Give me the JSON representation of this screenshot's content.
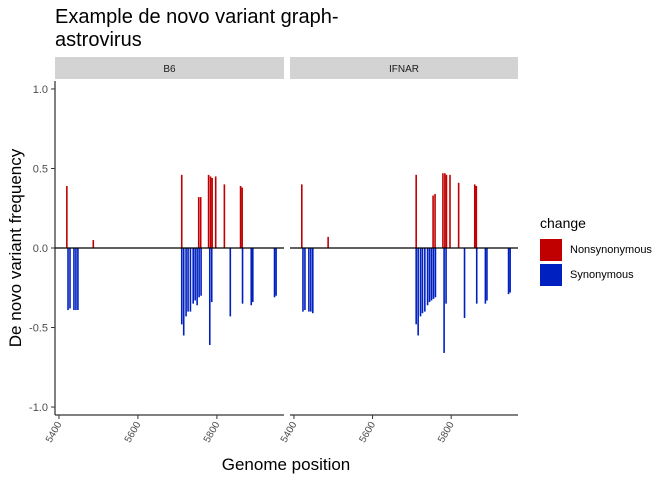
{
  "chart_data": {
    "type": "bar",
    "title_lines": [
      "Example de novo variant graph-",
      "astrovirus"
    ],
    "xlabel": "Genome position",
    "ylabel": "De novo variant frequency",
    "xlim": [
      5390,
      5970
    ],
    "ylim": [
      -1.05,
      1.05
    ],
    "x_ticks": [
      5400,
      5600,
      5800
    ],
    "y_ticks": [
      1.0,
      0.5,
      0.0,
      -0.5,
      -1.0
    ],
    "y_tick_labels": [
      "1.0",
      "0.5",
      "0.0",
      "-0.5",
      "-1.0"
    ],
    "grid": false,
    "legend": {
      "title": "change",
      "placement": "right",
      "items": [
        {
          "label": "Nonsynonymous",
          "color": "#C00000"
        },
        {
          "label": "Synonymous",
          "color": "#0020C0"
        }
      ]
    },
    "panels": [
      {
        "label": "B6",
        "series": [
          {
            "name": "Nonsynonymous",
            "color": "#C00000",
            "points": [
              [
                5420,
                0.39
              ],
              [
                5487,
                0.05
              ],
              [
                5711,
                0.46
              ],
              [
                5754,
                0.32
              ],
              [
                5759,
                0.32
              ],
              [
                5779,
                0.46
              ],
              [
                5784,
                0.45
              ],
              [
                5788,
                0.44
              ],
              [
                5797,
                0.45
              ],
              [
                5819,
                0.4
              ],
              [
                5860,
                0.39
              ],
              [
                5864,
                0.38
              ]
            ]
          },
          {
            "name": "Synonymous",
            "color": "#0020C0",
            "points": [
              [
                5423,
                -0.39
              ],
              [
                5428,
                -0.38
              ],
              [
                5438,
                -0.39
              ],
              [
                5443,
                -0.39
              ],
              [
                5448,
                -0.39
              ],
              [
                5711,
                -0.48
              ],
              [
                5716,
                -0.55
              ],
              [
                5722,
                -0.43
              ],
              [
                5727,
                -0.4
              ],
              [
                5733,
                -0.4
              ],
              [
                5740,
                -0.35
              ],
              [
                5745,
                -0.33
              ],
              [
                5750,
                -0.36
              ],
              [
                5755,
                -0.31
              ],
              [
                5760,
                -0.3
              ],
              [
                5782,
                -0.61
              ],
              [
                5787,
                -0.34
              ],
              [
                5834,
                -0.43
              ],
              [
                5865,
                -0.35
              ],
              [
                5887,
                -0.36
              ],
              [
                5891,
                -0.34
              ],
              [
                5946,
                -0.31
              ],
              [
                5950,
                -0.3
              ]
            ]
          }
        ]
      },
      {
        "label": "IFNAR",
        "series": [
          {
            "name": "Nonsynonymous",
            "color": "#C00000",
            "points": [
              [
                5420,
                0.4
              ],
              [
                5487,
                0.07
              ],
              [
                5711,
                0.46
              ],
              [
                5754,
                0.33
              ],
              [
                5759,
                0.34
              ],
              [
                5779,
                0.47
              ],
              [
                5784,
                0.47
              ],
              [
                5788,
                0.46
              ],
              [
                5797,
                0.46
              ],
              [
                5819,
                0.41
              ],
              [
                5860,
                0.4
              ],
              [
                5864,
                0.39
              ]
            ]
          },
          {
            "name": "Synonymous",
            "color": "#0020C0",
            "points": [
              [
                5423,
                -0.4
              ],
              [
                5428,
                -0.39
              ],
              [
                5438,
                -0.4
              ],
              [
                5443,
                -0.4
              ],
              [
                5448,
                -0.41
              ],
              [
                5711,
                -0.48
              ],
              [
                5716,
                -0.55
              ],
              [
                5722,
                -0.43
              ],
              [
                5727,
                -0.41
              ],
              [
                5733,
                -0.4
              ],
              [
                5740,
                -0.36
              ],
              [
                5745,
                -0.34
              ],
              [
                5750,
                -0.33
              ],
              [
                5755,
                -0.32
              ],
              [
                5760,
                -0.31
              ],
              [
                5782,
                -0.66
              ],
              [
                5787,
                -0.35
              ],
              [
                5834,
                -0.44
              ],
              [
                5865,
                -0.35
              ],
              [
                5887,
                -0.35
              ],
              [
                5891,
                -0.33
              ],
              [
                5946,
                -0.29
              ],
              [
                5950,
                -0.28
              ]
            ]
          }
        ]
      }
    ]
  }
}
